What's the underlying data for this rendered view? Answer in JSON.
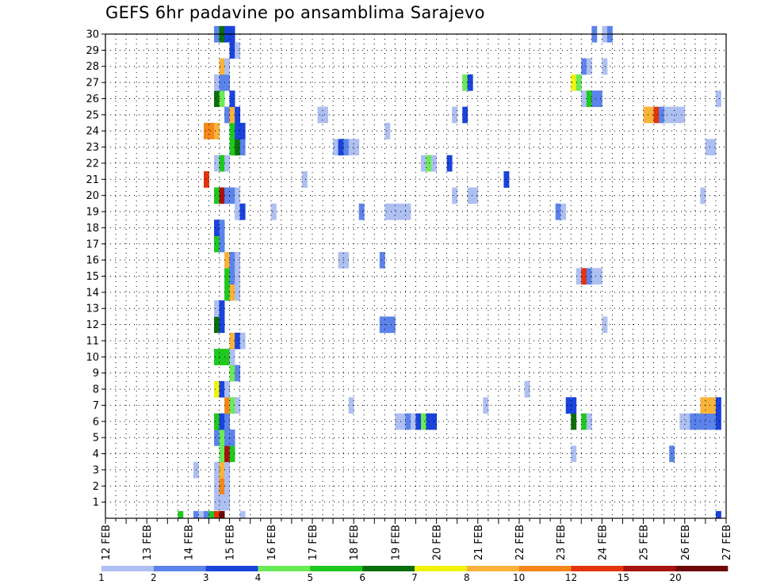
{
  "title": "GEFS 6hr padavine po ansamblima Sarajevo",
  "chart_data": {
    "type": "heatmap",
    "title": "GEFS 6hr padavine po ansamblima Sarajevo",
    "x_tick_labels": [
      "12 FEB",
      "13 FEB",
      "14 FEB",
      "15 FEB",
      "16 FEB",
      "17 FEB",
      "18 FEB",
      "19 FEB",
      "20 FEB",
      "21 FEB",
      "22 FEB",
      "23 FEB",
      "24 FEB",
      "25 FEB",
      "26 FEB",
      "27 FEB"
    ],
    "x_unit": "6-hour step (4 per day)",
    "y_tick_labels": [
      "1",
      "2",
      "3",
      "4",
      "5",
      "6",
      "7",
      "8",
      "9",
      "10",
      "11",
      "12",
      "13",
      "14",
      "15",
      "16",
      "17",
      "18",
      "19",
      "20",
      "21",
      "22",
      "23",
      "24",
      "25",
      "26",
      "27",
      "28",
      "29",
      "30"
    ],
    "ylim": [
      0,
      30
    ],
    "grid": true,
    "colorbar": {
      "levels": [
        "1",
        "2",
        "3",
        "4",
        "5",
        "6",
        "7",
        "8",
        "10",
        "12",
        "15",
        "20"
      ],
      "colors": [
        "#aebff2",
        "#5b83ea",
        "#1a43dc",
        "#69ea56",
        "#1ec81e",
        "#0b6e0b",
        "#f2f20f",
        "#f9b23a",
        "#f5861a",
        "#e2350e",
        "#a8120e",
        "#6e0808"
      ]
    },
    "cells": [
      [
        0,
        14,
        4
      ],
      [
        0,
        17,
        1
      ],
      [
        0,
        18,
        0
      ],
      [
        0,
        19,
        1
      ],
      [
        0,
        20,
        4
      ],
      [
        0,
        21,
        9
      ],
      [
        0,
        22,
        11
      ],
      [
        0,
        26,
        0
      ],
      [
        0,
        118,
        2
      ],
      [
        1,
        21,
        0
      ],
      [
        1,
        22,
        0
      ],
      [
        1,
        23,
        0
      ],
      [
        2,
        21,
        0
      ],
      [
        2,
        22,
        8
      ],
      [
        2,
        23,
        0
      ],
      [
        3,
        17,
        0
      ],
      [
        3,
        21,
        0
      ],
      [
        3,
        22,
        7
      ],
      [
        3,
        23,
        0
      ],
      [
        4,
        22,
        3
      ],
      [
        4,
        23,
        10
      ],
      [
        4,
        24,
        4
      ],
      [
        4,
        90,
        0
      ],
      [
        4,
        109,
        1
      ],
      [
        5,
        21,
        1
      ],
      [
        5,
        22,
        3
      ],
      [
        5,
        23,
        1
      ],
      [
        5,
        24,
        1
      ],
      [
        6,
        21,
        4
      ],
      [
        6,
        22,
        2
      ],
      [
        6,
        23,
        1
      ],
      [
        6,
        56,
        0
      ],
      [
        6,
        57,
        0
      ],
      [
        6,
        58,
        1
      ],
      [
        6,
        59,
        0
      ],
      [
        6,
        60,
        2
      ],
      [
        6,
        61,
        3
      ],
      [
        6,
        62,
        2
      ],
      [
        6,
        63,
        2
      ],
      [
        6,
        90,
        5
      ],
      [
        6,
        92,
        4
      ],
      [
        6,
        93,
        0
      ],
      [
        6,
        111,
        0
      ],
      [
        6,
        112,
        0
      ],
      [
        6,
        113,
        1
      ],
      [
        6,
        114,
        1
      ],
      [
        6,
        115,
        1
      ],
      [
        6,
        116,
        1
      ],
      [
        6,
        117,
        1
      ],
      [
        6,
        118,
        2
      ],
      [
        7,
        23,
        8
      ],
      [
        7,
        24,
        3
      ],
      [
        7,
        25,
        0
      ],
      [
        7,
        47,
        0
      ],
      [
        7,
        73,
        0
      ],
      [
        7,
        89,
        2
      ],
      [
        7,
        90,
        2
      ],
      [
        7,
        115,
        7
      ],
      [
        7,
        116,
        7
      ],
      [
        7,
        117,
        7
      ],
      [
        7,
        118,
        2
      ],
      [
        8,
        21,
        6
      ],
      [
        8,
        22,
        2
      ],
      [
        8,
        23,
        0
      ],
      [
        8,
        81,
        0
      ],
      [
        9,
        24,
        3
      ],
      [
        9,
        25,
        1
      ],
      [
        10,
        21,
        4
      ],
      [
        10,
        22,
        4
      ],
      [
        10,
        23,
        4
      ],
      [
        10,
        24,
        0
      ],
      [
        11,
        24,
        7
      ],
      [
        11,
        25,
        2
      ],
      [
        11,
        26,
        0
      ],
      [
        12,
        21,
        5
      ],
      [
        12,
        22,
        2
      ],
      [
        12,
        53,
        1
      ],
      [
        12,
        54,
        1
      ],
      [
        12,
        55,
        1
      ],
      [
        12,
        96,
        0
      ],
      [
        13,
        21,
        0
      ],
      [
        13,
        22,
        2
      ],
      [
        14,
        23,
        4
      ],
      [
        14,
        24,
        7
      ],
      [
        14,
        25,
        0
      ],
      [
        15,
        23,
        4
      ],
      [
        15,
        24,
        1
      ],
      [
        15,
        25,
        0
      ],
      [
        15,
        91,
        0
      ],
      [
        15,
        92,
        9
      ],
      [
        15,
        93,
        1
      ],
      [
        15,
        94,
        0
      ],
      [
        15,
        95,
        0
      ],
      [
        16,
        23,
        7
      ],
      [
        16,
        24,
        1
      ],
      [
        16,
        25,
        0
      ],
      [
        16,
        45,
        0
      ],
      [
        16,
        46,
        0
      ],
      [
        16,
        53,
        1
      ],
      [
        17,
        21,
        4
      ],
      [
        17,
        22,
        1
      ],
      [
        18,
        21,
        2
      ],
      [
        18,
        22,
        1
      ],
      [
        19,
        25,
        0
      ],
      [
        19,
        26,
        2
      ],
      [
        19,
        32,
        0
      ],
      [
        19,
        49,
        1
      ],
      [
        19,
        54,
        0
      ],
      [
        19,
        55,
        0
      ],
      [
        19,
        56,
        0
      ],
      [
        19,
        57,
        0
      ],
      [
        19,
        58,
        0
      ],
      [
        19,
        87,
        1
      ],
      [
        19,
        88,
        0
      ],
      [
        20,
        21,
        4
      ],
      [
        20,
        22,
        10
      ],
      [
        20,
        23,
        1
      ],
      [
        20,
        24,
        1
      ],
      [
        20,
        25,
        0
      ],
      [
        20,
        67,
        0
      ],
      [
        20,
        70,
        0
      ],
      [
        20,
        71,
        0
      ],
      [
        20,
        115,
        0
      ],
      [
        21,
        19,
        9
      ],
      [
        21,
        38,
        0
      ],
      [
        21,
        77,
        2
      ],
      [
        22,
        21,
        0
      ],
      [
        22,
        22,
        4
      ],
      [
        22,
        23,
        0
      ],
      [
        22,
        61,
        0
      ],
      [
        22,
        62,
        3
      ],
      [
        22,
        63,
        0
      ],
      [
        22,
        66,
        2
      ],
      [
        23,
        44,
        0
      ],
      [
        23,
        45,
        2
      ],
      [
        23,
        46,
        1
      ],
      [
        23,
        47,
        0
      ],
      [
        23,
        48,
        0
      ],
      [
        23,
        24,
        4
      ],
      [
        23,
        25,
        5
      ],
      [
        23,
        26,
        1
      ],
      [
        23,
        116,
        0
      ],
      [
        23,
        117,
        0
      ],
      [
        24,
        19,
        8
      ],
      [
        24,
        20,
        8
      ],
      [
        24,
        21,
        7
      ],
      [
        24,
        24,
        4
      ],
      [
        24,
        25,
        2
      ],
      [
        24,
        26,
        2
      ],
      [
        24,
        54,
        0
      ],
      [
        25,
        23,
        1
      ],
      [
        25,
        24,
        7
      ],
      [
        25,
        25,
        2
      ],
      [
        25,
        41,
        0
      ],
      [
        25,
        42,
        0
      ],
      [
        25,
        67,
        0
      ],
      [
        25,
        69,
        2
      ],
      [
        25,
        104,
        7
      ],
      [
        25,
        105,
        7
      ],
      [
        25,
        106,
        9
      ],
      [
        25,
        107,
        1
      ],
      [
        25,
        108,
        0
      ],
      [
        25,
        109,
        0
      ],
      [
        25,
        110,
        0
      ],
      [
        25,
        111,
        0
      ],
      [
        26,
        21,
        5
      ],
      [
        26,
        22,
        3
      ],
      [
        26,
        24,
        2
      ],
      [
        26,
        92,
        0
      ],
      [
        26,
        93,
        4
      ],
      [
        26,
        94,
        1
      ],
      [
        26,
        95,
        1
      ],
      [
        26,
        118,
        0
      ],
      [
        27,
        21,
        0
      ],
      [
        27,
        22,
        1
      ],
      [
        27,
        23,
        1
      ],
      [
        27,
        69,
        3
      ],
      [
        27,
        70,
        2
      ],
      [
        27,
        90,
        6
      ],
      [
        27,
        91,
        3
      ],
      [
        28,
        22,
        7
      ],
      [
        28,
        23,
        0
      ],
      [
        28,
        92,
        1
      ],
      [
        28,
        93,
        0
      ],
      [
        28,
        96,
        0
      ],
      [
        29,
        24,
        2
      ],
      [
        29,
        25,
        0
      ],
      [
        30,
        21,
        1
      ],
      [
        30,
        22,
        5
      ],
      [
        30,
        23,
        2
      ],
      [
        30,
        24,
        2
      ],
      [
        30,
        94,
        1
      ],
      [
        30,
        96,
        0
      ],
      [
        30,
        97,
        1
      ]
    ]
  }
}
